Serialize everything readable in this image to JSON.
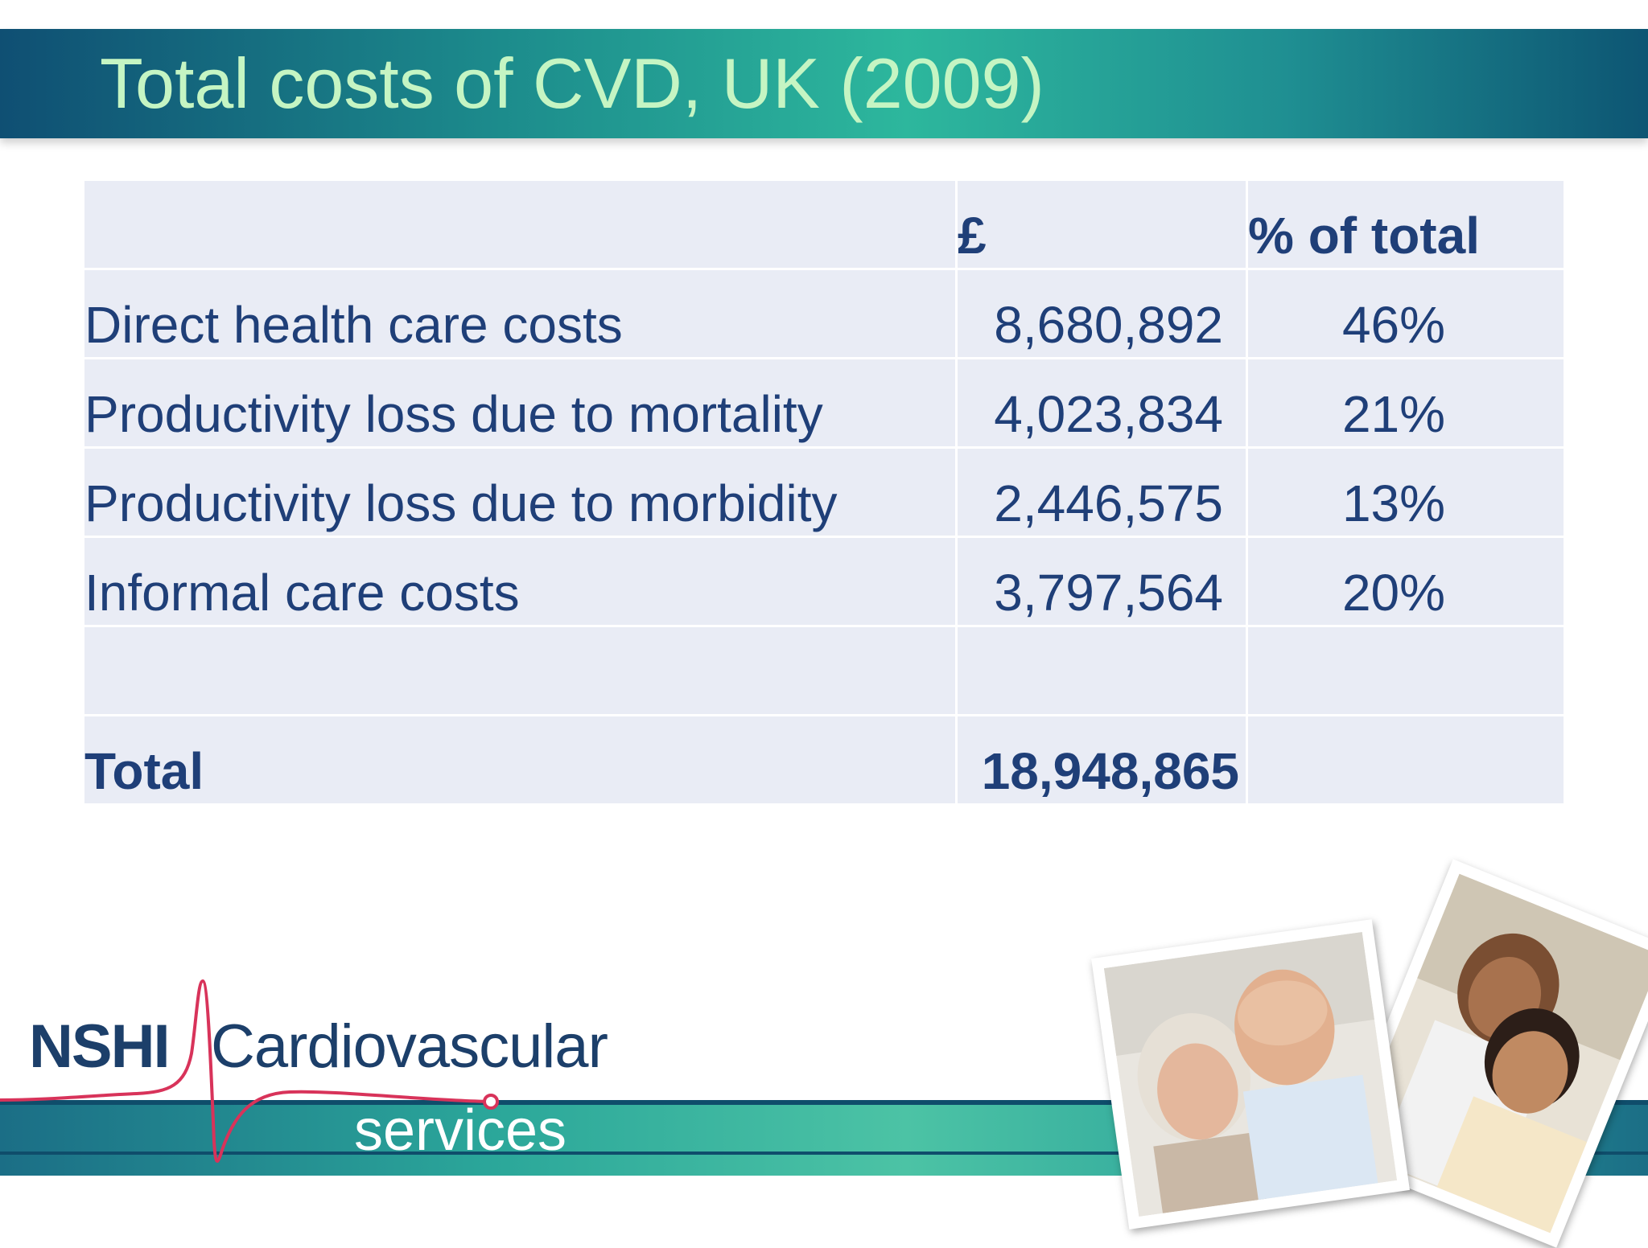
{
  "slide": {
    "title": "Total costs of CVD, UK (2009)"
  },
  "table": {
    "headers": [
      "",
      "£",
      "% of total"
    ],
    "rows": [
      {
        "label": "Direct health care costs",
        "amount": "8,680,892",
        "percent": "46%"
      },
      {
        "label": "Productivity loss due to mortality",
        "amount": "4,023,834",
        "percent": "21%"
      },
      {
        "label": "Productivity loss due to morbidity",
        "amount": "2,446,575",
        "percent": "13%"
      },
      {
        "label": "Informal care costs",
        "amount": "3,797,564",
        "percent": "20%"
      },
      {
        "label": "",
        "amount": "",
        "percent": ""
      }
    ],
    "total": {
      "label": "Total",
      "amount": "18,948,865",
      "percent": ""
    }
  },
  "logo": {
    "brand": "NSHI",
    "name": "Cardiovascular",
    "tagline": "services"
  },
  "colors": {
    "title_text": "#c5f5c3",
    "table_text": "#1f3f78",
    "table_cell": "#e9ecf5",
    "band_teal": "#2db79d",
    "band_navy": "#0f4f73",
    "ecg_line": "#d8335a"
  },
  "images": {
    "photo_front": "older-couple-photo",
    "photo_back": "mother-and-son-photo"
  }
}
